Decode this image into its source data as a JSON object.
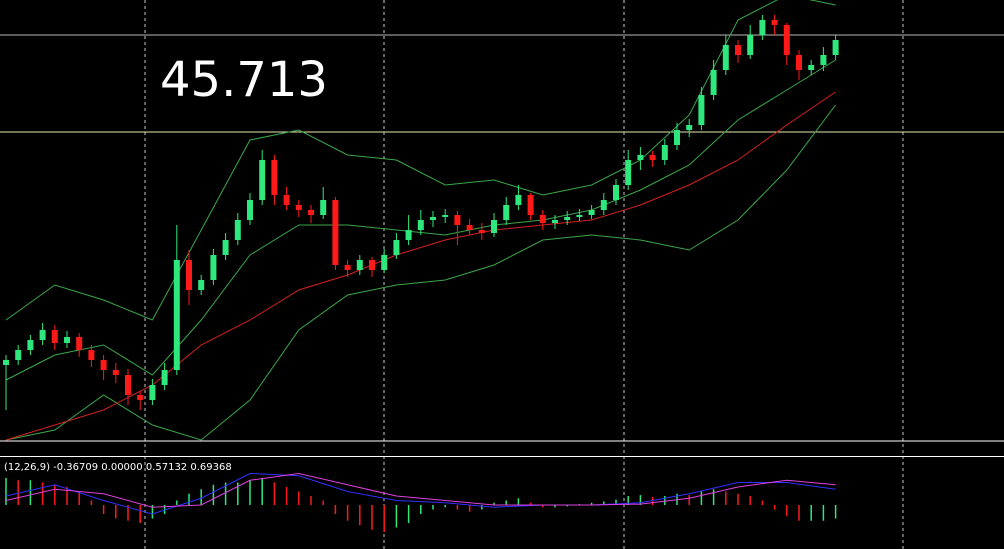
{
  "chart_data": {
    "type": "candlestick",
    "label": "45.713",
    "ylim": [
      0,
      455
    ],
    "up_color": "#2ee87e",
    "down_color": "#ff1a1a",
    "candles": [
      [
        90,
        100,
        45,
        95
      ],
      [
        95,
        110,
        90,
        105
      ],
      [
        105,
        120,
        100,
        115
      ],
      [
        115,
        132,
        110,
        125
      ],
      [
        125,
        130,
        105,
        112
      ],
      [
        112,
        124,
        107,
        118
      ],
      [
        118,
        122,
        98,
        105
      ],
      [
        105,
        110,
        88,
        95
      ],
      [
        95,
        100,
        75,
        85
      ],
      [
        85,
        92,
        72,
        80
      ],
      [
        80,
        86,
        50,
        60
      ],
      [
        60,
        64,
        45,
        55
      ],
      [
        55,
        76,
        50,
        70
      ],
      [
        70,
        92,
        65,
        85
      ],
      [
        85,
        230,
        80,
        195
      ],
      [
        195,
        205,
        150,
        165
      ],
      [
        165,
        180,
        160,
        175
      ],
      [
        175,
        206,
        170,
        200
      ],
      [
        200,
        222,
        195,
        215
      ],
      [
        215,
        242,
        210,
        235
      ],
      [
        235,
        262,
        230,
        255
      ],
      [
        255,
        305,
        250,
        295
      ],
      [
        295,
        300,
        250,
        260
      ],
      [
        260,
        268,
        245,
        250
      ],
      [
        250,
        255,
        238,
        245
      ],
      [
        245,
        250,
        232,
        240
      ],
      [
        240,
        268,
        236,
        255
      ],
      [
        255,
        258,
        185,
        190
      ],
      [
        190,
        195,
        178,
        185
      ],
      [
        185,
        200,
        180,
        195
      ],
      [
        195,
        198,
        178,
        185
      ],
      [
        185,
        206,
        182,
        200
      ],
      [
        200,
        222,
        196,
        215
      ],
      [
        215,
        240,
        210,
        225
      ],
      [
        225,
        245,
        220,
        235
      ],
      [
        235,
        244,
        228,
        238
      ],
      [
        238,
        246,
        232,
        240
      ],
      [
        240,
        244,
        210,
        230
      ],
      [
        230,
        236,
        220,
        225
      ],
      [
        225,
        232,
        215,
        222
      ],
      [
        222,
        242,
        218,
        235
      ],
      [
        235,
        258,
        230,
        250
      ],
      [
        250,
        270,
        245,
        260
      ],
      [
        260,
        262,
        235,
        240
      ],
      [
        240,
        245,
        225,
        232
      ],
      [
        232,
        240,
        226,
        235
      ],
      [
        235,
        244,
        230,
        238
      ],
      [
        238,
        246,
        234,
        240
      ],
      [
        240,
        250,
        236,
        245
      ],
      [
        245,
        262,
        240,
        255
      ],
      [
        255,
        276,
        250,
        270
      ],
      [
        270,
        305,
        265,
        295
      ],
      [
        295,
        308,
        285,
        300
      ],
      [
        300,
        304,
        288,
        295
      ],
      [
        295,
        316,
        290,
        310
      ],
      [
        310,
        332,
        305,
        325
      ],
      [
        325,
        336,
        318,
        330
      ],
      [
        330,
        368,
        325,
        360
      ],
      [
        360,
        395,
        355,
        385
      ],
      [
        385,
        420,
        380,
        410
      ],
      [
        410,
        415,
        392,
        400
      ],
      [
        400,
        430,
        396,
        420
      ],
      [
        420,
        440,
        415,
        435
      ],
      [
        435,
        440,
        420,
        430
      ],
      [
        430,
        432,
        390,
        400
      ],
      [
        400,
        405,
        375,
        385
      ],
      [
        385,
        395,
        380,
        390
      ],
      [
        390,
        408,
        384,
        400
      ],
      [
        400,
        420,
        395,
        415
      ]
    ],
    "hlines": [
      420,
      323,
      14
    ],
    "hline_colors": [
      "#b8b8b8",
      "#e8e8b0",
      "#ffffff"
    ],
    "overlays": [
      {
        "color": "#3aa84a",
        "x": [
          0,
          4,
          8,
          12,
          16,
          20,
          24,
          28,
          32,
          36,
          40,
          44,
          48,
          52,
          56,
          60,
          64,
          68
        ],
        "values": [
          135,
          170,
          155,
          135,
          225,
          315,
          325,
          300,
          295,
          270,
          275,
          260,
          270,
          295,
          340,
          435,
          460,
          450
        ]
      },
      {
        "color": "#3aa84a",
        "x": [
          0,
          4,
          8,
          12,
          16,
          20,
          24,
          28,
          32,
          36,
          40,
          44,
          48,
          52,
          56,
          60,
          64,
          68
        ],
        "values": [
          75,
          100,
          110,
          80,
          135,
          200,
          230,
          230,
          225,
          220,
          230,
          235,
          245,
          265,
          290,
          335,
          365,
          395
        ]
      },
      {
        "color": "#3aa84a",
        "x": [
          0,
          4,
          8,
          12,
          16,
          20,
          24,
          28,
          32,
          36,
          40,
          44,
          48,
          52,
          56,
          60,
          64,
          68
        ],
        "values": [
          15,
          25,
          60,
          30,
          15,
          55,
          125,
          160,
          170,
          175,
          190,
          215,
          220,
          215,
          205,
          235,
          285,
          350
        ]
      },
      {
        "color": "#d42020",
        "x": [
          0,
          4,
          8,
          12,
          16,
          20,
          24,
          28,
          32,
          36,
          40,
          44,
          48,
          52,
          56,
          60,
          64,
          68
        ],
        "values": [
          15,
          30,
          45,
          70,
          110,
          135,
          165,
          180,
          200,
          215,
          225,
          230,
          235,
          250,
          270,
          295,
          330,
          363
        ]
      }
    ],
    "macd": {
      "label": "(12,26,9) -0.36709 0.00000 0.57132 0.69368",
      "ylim": [
        -1,
        1
      ],
      "histogram": [
        0.6,
        0.55,
        0.55,
        0.5,
        0.45,
        0.4,
        0.3,
        0.1,
        -0.2,
        -0.3,
        -0.35,
        -0.4,
        -0.3,
        -0.2,
        0.1,
        0.25,
        0.35,
        0.45,
        0.5,
        0.5,
        0.55,
        0.6,
        0.5,
        0.4,
        0.3,
        0.2,
        0.1,
        -0.2,
        -0.35,
        -0.45,
        -0.55,
        -0.6,
        -0.5,
        -0.4,
        -0.2,
        -0.1,
        -0.05,
        -0.1,
        -0.15,
        -0.1,
        0.05,
        0.1,
        0.15,
        0.05,
        -0.05,
        -0.05,
        -0.03,
        0.02,
        0.05,
        0.08,
        0.12,
        0.2,
        0.22,
        0.18,
        0.2,
        0.25,
        0.22,
        0.3,
        0.35,
        0.3,
        0.25,
        0.2,
        0.1,
        -0.1,
        -0.25,
        -0.35,
        -0.35,
        -0.35,
        -0.3
      ],
      "lines": [
        {
          "color": "#3030ff",
          "x": [
            0,
            4,
            8,
            12,
            16,
            20,
            24,
            28,
            32,
            36,
            40,
            44,
            48,
            52,
            56,
            60,
            64,
            68
          ],
          "values": [
            0.2,
            0.45,
            0.1,
            -0.2,
            0.15,
            0.7,
            0.65,
            0.3,
            0.1,
            0.05,
            -0.05,
            0,
            0,
            0.05,
            0.25,
            0.5,
            0.5,
            0.35
          ]
        },
        {
          "color": "#e040e0",
          "x": [
            0,
            4,
            8,
            12,
            16,
            20,
            24,
            28,
            32,
            36,
            40,
            44,
            48,
            52,
            56,
            60,
            64,
            68
          ],
          "values": [
            0.1,
            0.35,
            0.25,
            -0.05,
            0,
            0.55,
            0.7,
            0.45,
            0.2,
            0.1,
            0,
            0,
            0,
            0.02,
            0.15,
            0.4,
            0.55,
            0.45
          ]
        }
      ]
    }
  }
}
